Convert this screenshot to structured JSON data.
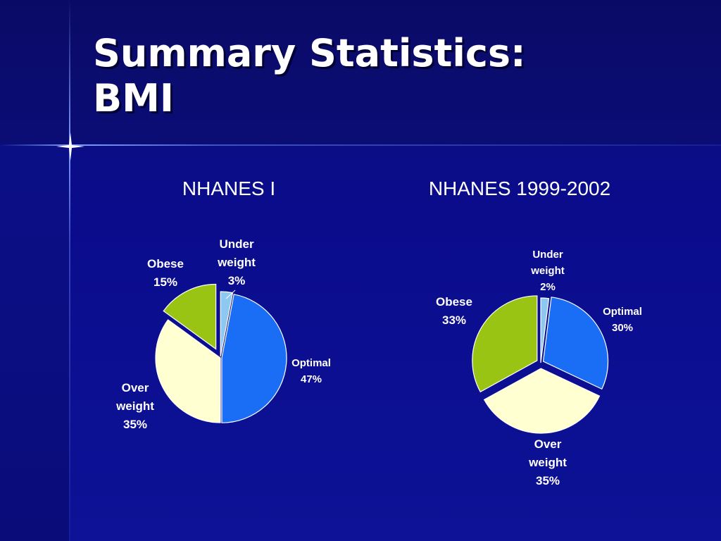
{
  "slide": {
    "title_line1": "Summary Statistics:",
    "title_line2": "BMI"
  },
  "colors": {
    "underweight": "#8cc8f0",
    "optimal": "#1a6ef5",
    "overweight": "#ffffd2",
    "obese": "#99c414",
    "text": "#ffffff"
  },
  "chart_data": [
    {
      "type": "pie",
      "title": "NHANES I",
      "slices": [
        {
          "label_lines": [
            "Under",
            "weight",
            "3%"
          ],
          "value": 3,
          "category": "underweight"
        },
        {
          "label_lines": [
            "Optimal",
            "47%"
          ],
          "value": 47,
          "category": "optimal"
        },
        {
          "label_lines": [
            "Over",
            "weight",
            "35%"
          ],
          "value": 35,
          "category": "overweight"
        },
        {
          "label_lines": [
            "Obese",
            "15%"
          ],
          "value": 15,
          "category": "obese"
        }
      ]
    },
    {
      "type": "pie",
      "title": "NHANES 1999-2002",
      "slices": [
        {
          "label_lines": [
            "Under",
            "weight",
            "2%"
          ],
          "value": 2,
          "category": "underweight"
        },
        {
          "label_lines": [
            "Optimal",
            "30%"
          ],
          "value": 30,
          "category": "optimal"
        },
        {
          "label_lines": [
            "Over",
            "weight",
            "35%"
          ],
          "value": 35,
          "category": "overweight"
        },
        {
          "label_lines": [
            "Obese",
            "33%"
          ],
          "value": 33,
          "category": "obese"
        }
      ]
    }
  ]
}
